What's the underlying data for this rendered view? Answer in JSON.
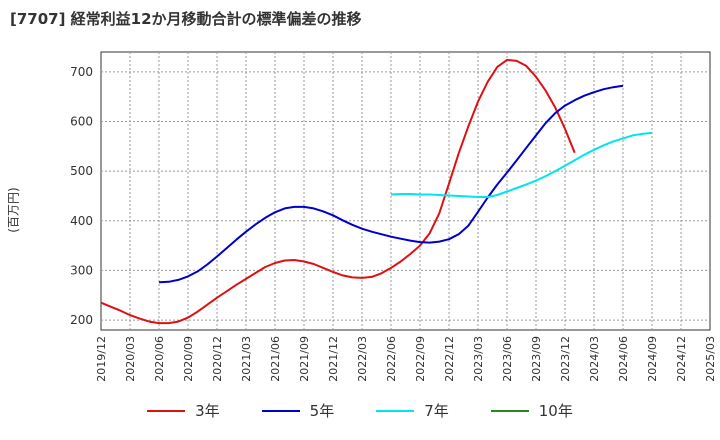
{
  "chart_data": {
    "type": "line",
    "title": "[7707]  経常利益12か月移動合計の標準偏差の推移",
    "ylabel": "(百万円)",
    "xlabel": "",
    "ylim": [
      180,
      740
    ],
    "yticks": [
      200,
      300,
      400,
      500,
      600,
      700
    ],
    "xtick_labels": [
      "2019/12",
      "2020/03",
      "2020/06",
      "2020/09",
      "2020/12",
      "2021/03",
      "2021/06",
      "2021/09",
      "2021/12",
      "2022/03",
      "2022/06",
      "2022/09",
      "2022/12",
      "2023/03",
      "2023/06",
      "2023/09",
      "2023/12",
      "2024/03",
      "2024/06",
      "2024/09",
      "2024/12",
      "2025/03"
    ],
    "grid": true,
    "legend_position": "bottom",
    "series": [
      {
        "name": "3年",
        "color": "#dd1111",
        "start_index": 0,
        "values": [
          235,
          227,
          219,
          210,
          203,
          197,
          194,
          194,
          197,
          205,
          217,
          231,
          245,
          258,
          271,
          283,
          295,
          307,
          315,
          320,
          321,
          318,
          313,
          305,
          297,
          290,
          286,
          285,
          287,
          294,
          305,
          318,
          333,
          350,
          375,
          415,
          475,
          536,
          590,
          640,
          680,
          710,
          724,
          722,
          712,
          690,
          662,
          628,
          585,
          537
        ]
      },
      {
        "name": "5年",
        "color": "#0000cc",
        "start_index": 6,
        "values": [
          276,
          277,
          281,
          288,
          298,
          312,
          328,
          345,
          362,
          378,
          393,
          406,
          417,
          425,
          428,
          428,
          425,
          419,
          411,
          401,
          392,
          384,
          378,
          373,
          368,
          364,
          360,
          357,
          356,
          358,
          363,
          373,
          390,
          418,
          447,
          473,
          497,
          522,
          547,
          572,
          597,
          617,
          632,
          643,
          652,
          659,
          665,
          669,
          672
        ]
      },
      {
        "name": "7年",
        "color": "#00e5ee",
        "start_index": 30,
        "values": [
          453,
          454,
          454,
          453,
          453,
          452,
          451,
          450,
          449,
          448,
          448,
          452,
          459,
          466,
          473,
          481,
          490,
          500,
          511,
          522,
          533,
          543,
          552,
          560,
          566,
          572,
          575,
          577
        ]
      },
      {
        "name": "10年",
        "color": "#228b22",
        "start_index": 0,
        "values": []
      }
    ]
  }
}
